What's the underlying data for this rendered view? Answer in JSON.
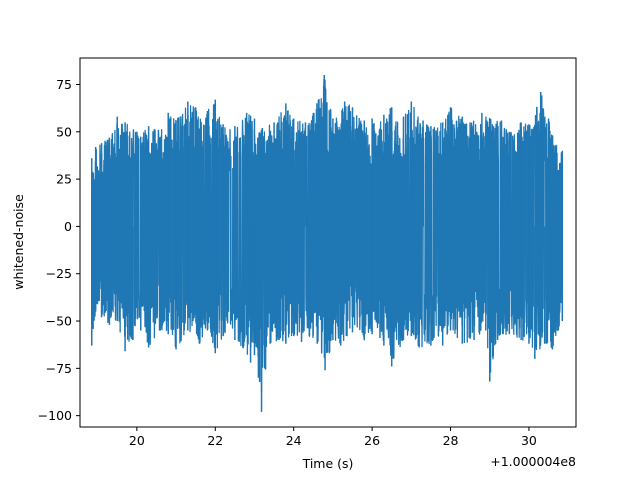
{
  "chart_data": {
    "type": "line",
    "title": "",
    "xlabel": "Time (s)",
    "ylabel": "whitened-noise",
    "x_offset_label": "+1.000004e8",
    "xlim": [
      18.55,
      31.2
    ],
    "ylim": [
      -106,
      89
    ],
    "x_ticks": [
      20,
      22,
      24,
      26,
      28,
      30
    ],
    "y_ticks": [
      -100,
      -75,
      -50,
      -25,
      0,
      25,
      50,
      75
    ],
    "grid": false,
    "legend": "none",
    "series": [
      {
        "color": "#1f77b4",
        "x_range": [
          18.85,
          30.85
        ],
        "envelope_max": [
          [
            18.85,
            36
          ],
          [
            18.95,
            42
          ],
          [
            19.1,
            44
          ],
          [
            19.3,
            47
          ],
          [
            19.5,
            58
          ],
          [
            19.7,
            55
          ],
          [
            20.0,
            50
          ],
          [
            20.3,
            53
          ],
          [
            20.55,
            51
          ],
          [
            20.8,
            60
          ],
          [
            21.0,
            56
          ],
          [
            21.3,
            66
          ],
          [
            21.5,
            63
          ],
          [
            21.8,
            61
          ],
          [
            22.0,
            67
          ],
          [
            22.2,
            54
          ],
          [
            22.5,
            53
          ],
          [
            22.8,
            60
          ],
          [
            23.0,
            57
          ],
          [
            23.2,
            52
          ],
          [
            23.5,
            55
          ],
          [
            23.8,
            65
          ],
          [
            24.0,
            57
          ],
          [
            24.3,
            55
          ],
          [
            24.5,
            60
          ],
          [
            24.78,
            80
          ],
          [
            25.0,
            57
          ],
          [
            25.3,
            66
          ],
          [
            25.5,
            63
          ],
          [
            25.8,
            56
          ],
          [
            26.0,
            57
          ],
          [
            26.3,
            59
          ],
          [
            26.5,
            63
          ],
          [
            26.8,
            58
          ],
          [
            27.0,
            66
          ],
          [
            27.3,
            56
          ],
          [
            27.5,
            53
          ],
          [
            27.8,
            55
          ],
          [
            28.0,
            63
          ],
          [
            28.3,
            58
          ],
          [
            28.5,
            55
          ],
          [
            28.8,
            60
          ],
          [
            29.0,
            57
          ],
          [
            29.3,
            56
          ],
          [
            29.5,
            50
          ],
          [
            29.8,
            55
          ],
          [
            30.0,
            54
          ],
          [
            30.2,
            63
          ],
          [
            30.3,
            71
          ],
          [
            30.5,
            57
          ],
          [
            30.7,
            43
          ],
          [
            30.85,
            40
          ]
        ],
        "envelope_min": [
          [
            18.85,
            -63
          ],
          [
            18.95,
            -45
          ],
          [
            19.1,
            -48
          ],
          [
            19.3,
            -52
          ],
          [
            19.5,
            -50
          ],
          [
            19.7,
            -66
          ],
          [
            19.9,
            -60
          ],
          [
            20.1,
            -55
          ],
          [
            20.3,
            -64
          ],
          [
            20.6,
            -55
          ],
          [
            20.8,
            -57
          ],
          [
            21.0,
            -65
          ],
          [
            21.3,
            -55
          ],
          [
            21.6,
            -62
          ],
          [
            21.8,
            -55
          ],
          [
            22.0,
            -67
          ],
          [
            22.2,
            -58
          ],
          [
            22.5,
            -60
          ],
          [
            22.7,
            -64
          ],
          [
            22.9,
            -72
          ],
          [
            23.0,
            -68
          ],
          [
            23.1,
            -80
          ],
          [
            23.18,
            -98
          ],
          [
            23.4,
            -62
          ],
          [
            23.6,
            -60
          ],
          [
            23.8,
            -62
          ],
          [
            24.0,
            -58
          ],
          [
            24.2,
            -61
          ],
          [
            24.4,
            -58
          ],
          [
            24.6,
            -62
          ],
          [
            24.8,
            -76
          ],
          [
            25.0,
            -60
          ],
          [
            25.2,
            -63
          ],
          [
            25.5,
            -56
          ],
          [
            25.8,
            -60
          ],
          [
            26.0,
            -57
          ],
          [
            26.2,
            -59
          ],
          [
            26.3,
            -63
          ],
          [
            26.5,
            -74
          ],
          [
            26.8,
            -60
          ],
          [
            27.0,
            -58
          ],
          [
            27.2,
            -64
          ],
          [
            27.5,
            -63
          ],
          [
            27.8,
            -63
          ],
          [
            28.0,
            -55
          ],
          [
            28.3,
            -62
          ],
          [
            28.6,
            -60
          ],
          [
            28.9,
            -55
          ],
          [
            29.0,
            -82
          ],
          [
            29.2,
            -60
          ],
          [
            29.5,
            -57
          ],
          [
            29.8,
            -60
          ],
          [
            30.0,
            -62
          ],
          [
            30.15,
            -70
          ],
          [
            30.4,
            -62
          ],
          [
            30.6,
            -65
          ],
          [
            30.75,
            -55
          ],
          [
            30.85,
            -50
          ]
        ]
      }
    ]
  }
}
